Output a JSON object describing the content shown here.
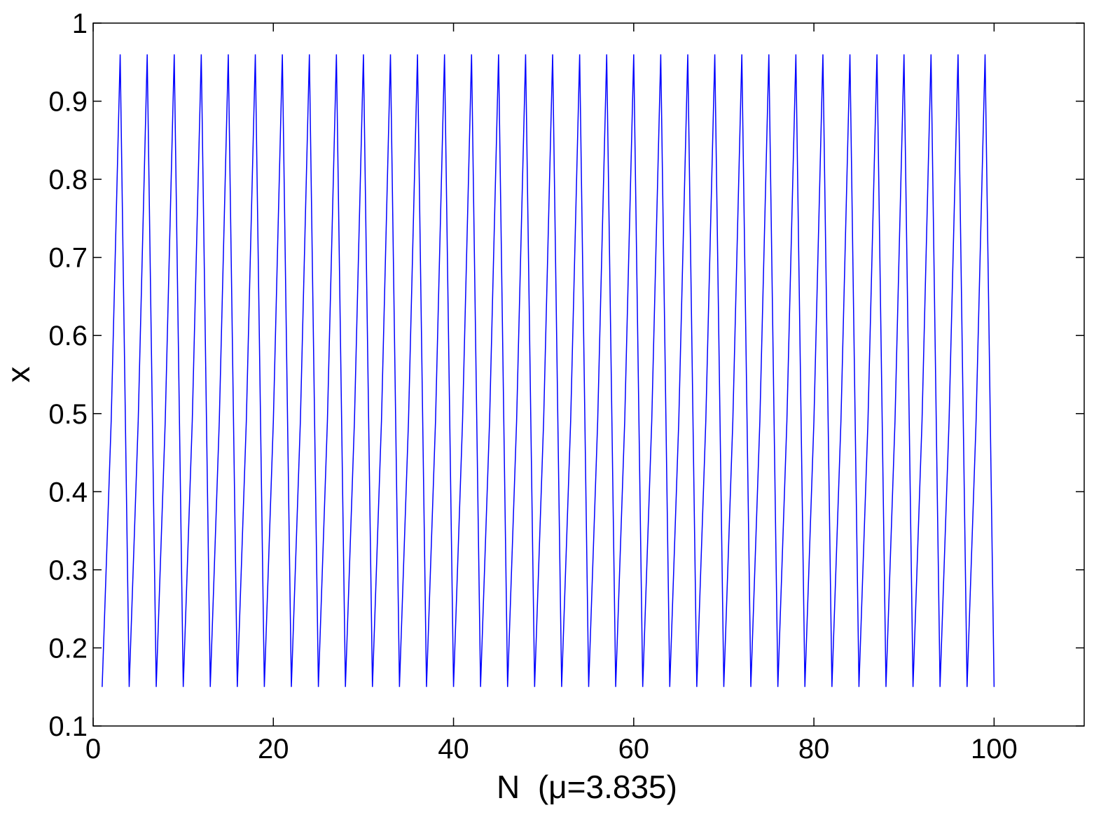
{
  "chart_data": {
    "type": "line",
    "xlabel": "N  (μ=3.835)",
    "ylabel": "x",
    "color": "#0000ff",
    "x": [
      1,
      2,
      3,
      4,
      5,
      6,
      7,
      8,
      9,
      10,
      11,
      12,
      13,
      14,
      15,
      16,
      17,
      18,
      19,
      20,
      21,
      22,
      23,
      24,
      25,
      26,
      27,
      28,
      29,
      30,
      31,
      32,
      33,
      34,
      35,
      36,
      37,
      38,
      39,
      40,
      41,
      42,
      43,
      44,
      45,
      46,
      47,
      48,
      49,
      50,
      51,
      52,
      53,
      54,
      55,
      56,
      57,
      58,
      59,
      60,
      61,
      62,
      63,
      64,
      65,
      66,
      67,
      68,
      69,
      70,
      71,
      72,
      73,
      74,
      75,
      76,
      77,
      78,
      79,
      80,
      81,
      82,
      83,
      84,
      85,
      86,
      87,
      88,
      89,
      90,
      91,
      92,
      93,
      94,
      95,
      96,
      97,
      98,
      99,
      100
    ],
    "values": [
      0.15,
      0.49,
      0.96,
      0.15,
      0.49,
      0.96,
      0.15,
      0.49,
      0.96,
      0.15,
      0.49,
      0.96,
      0.15,
      0.49,
      0.96,
      0.15,
      0.49,
      0.96,
      0.15,
      0.49,
      0.96,
      0.15,
      0.49,
      0.96,
      0.15,
      0.49,
      0.96,
      0.15,
      0.49,
      0.96,
      0.15,
      0.49,
      0.96,
      0.15,
      0.49,
      0.96,
      0.15,
      0.49,
      0.96,
      0.15,
      0.49,
      0.96,
      0.15,
      0.49,
      0.96,
      0.15,
      0.49,
      0.96,
      0.15,
      0.49,
      0.96,
      0.15,
      0.49,
      0.96,
      0.15,
      0.49,
      0.96,
      0.15,
      0.49,
      0.96,
      0.15,
      0.49,
      0.96,
      0.15,
      0.49,
      0.96,
      0.15,
      0.49,
      0.96,
      0.15,
      0.49,
      0.96,
      0.15,
      0.49,
      0.96,
      0.15,
      0.49,
      0.96,
      0.15,
      0.49,
      0.96,
      0.15,
      0.49,
      0.96,
      0.15,
      0.49,
      0.96,
      0.15,
      0.49,
      0.96,
      0.15,
      0.49,
      0.96,
      0.15,
      0.49,
      0.96,
      0.15,
      0.49,
      0.96,
      0.15
    ],
    "xlim": [
      0,
      110
    ],
    "xticks": [
      0,
      20,
      40,
      60,
      80,
      100
    ],
    "ylim": [
      0.1,
      1
    ],
    "yticks": [
      0.1,
      0.2,
      0.3,
      0.4,
      0.5,
      0.6,
      0.7,
      0.8,
      0.9,
      1
    ],
    "grid": false
  }
}
